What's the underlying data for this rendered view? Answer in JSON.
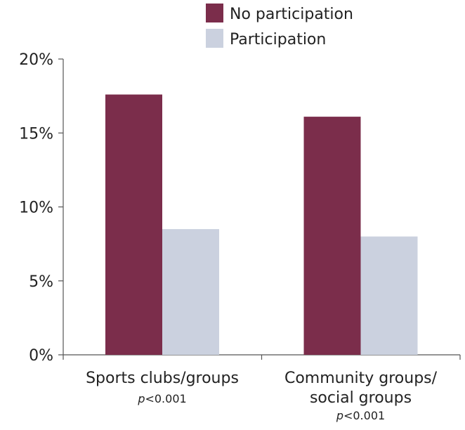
{
  "chart_data": {
    "type": "bar",
    "categories": [
      {
        "lines": [
          "Sports clubs/groups"
        ],
        "p_value": "<0.001"
      },
      {
        "lines": [
          "Community groups/",
          "social groups"
        ],
        "p_value": "<0.001"
      }
    ],
    "p_prefix": "p",
    "series": [
      {
        "name": "No participation",
        "color": "#7b2d4b",
        "values": [
          17.6,
          16.1
        ]
      },
      {
        "name": "Participation",
        "color": "#cbd1df",
        "values": [
          8.5,
          8.0
        ]
      }
    ],
    "ylim": [
      0,
      20
    ],
    "yticks": [
      0,
      5,
      10,
      15,
      20
    ],
    "ytick_labels": [
      "0%",
      "5%",
      "10%",
      "15%",
      "20%"
    ],
    "legend_position": "top-center",
    "grid": false,
    "title": "",
    "xlabel": "",
    "ylabel": ""
  }
}
